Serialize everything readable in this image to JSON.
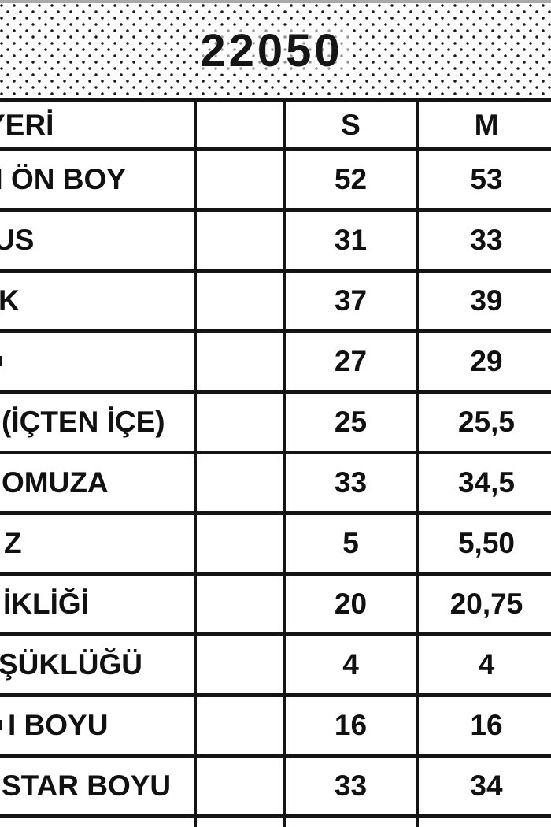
{
  "title": "22050",
  "colors": {
    "line": "#141414",
    "text": "#111111",
    "top_bar": "#a9a9a9",
    "dot": "#161616",
    "background": "#ffffff"
  },
  "table": {
    "header": {
      "location_label": "YERİ",
      "tolerance_label": "",
      "size_s": "S",
      "size_m": "M"
    },
    "rows": [
      {
        "label": "N ÖN BOY",
        "tol": "",
        "s": "52",
        "m": "53",
        "edge_mark": false
      },
      {
        "label": "US",
        "tol": "",
        "s": "31",
        "m": "33",
        "edge_mark": false
      },
      {
        "label": "K",
        "tol": "",
        "s": "37",
        "m": "39",
        "edge_mark": false
      },
      {
        "label": "",
        "tol": "",
        "s": "27",
        "m": "29",
        "edge_mark": true
      },
      {
        "label": "(İÇTEN İÇE)",
        "tol": "",
        "s": "25",
        "m": "25,5",
        "edge_mark": false
      },
      {
        "label": "OMUZA",
        "tol": "",
        "s": "33",
        "m": "34,5",
        "edge_mark": false
      },
      {
        "label": "Z",
        "tol": "",
        "s": "5",
        "m": "5,50",
        "edge_mark": false
      },
      {
        "label": "İKLİĞİ",
        "tol": "",
        "s": "20",
        "m": "20,75",
        "edge_mark": false
      },
      {
        "label": "ŞÜKLÜĞÜ",
        "tol": "",
        "s": "4",
        "m": "4",
        "edge_mark": false
      },
      {
        "label": "I BOYU",
        "tol": "",
        "s": "16",
        "m": "16",
        "edge_mark": true
      },
      {
        "label": "STAR BOYU",
        "tol": "",
        "s": "33",
        "m": "34",
        "edge_mark": false
      }
    ]
  }
}
